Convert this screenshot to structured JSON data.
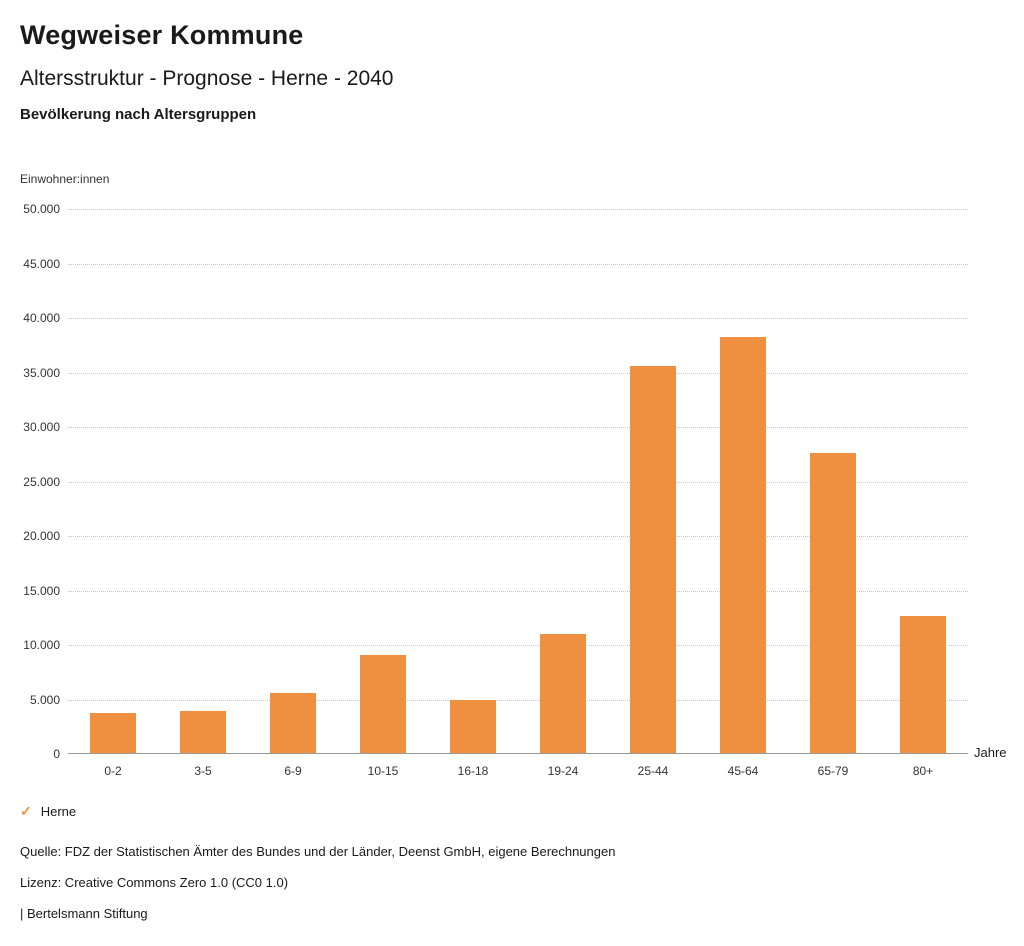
{
  "header": {
    "title": "Wegweiser Kommune",
    "subtitle": "Altersstruktur - Prognose - Herne - 2040",
    "section_title": "Bevölkerung nach Altersgruppen"
  },
  "chart_data": {
    "type": "bar",
    "title": "Bevölkerung nach Altersgruppen",
    "unit_label": "Einwohner:innen",
    "xlabel": "Jahre",
    "ylabel": "Einwohner:innen",
    "categories": [
      "0-2",
      "3-5",
      "6-9",
      "10-15",
      "16-18",
      "19-24",
      "25-44",
      "45-64",
      "65-79",
      "80+"
    ],
    "values": [
      3700,
      3900,
      5500,
      9000,
      4900,
      10900,
      35500,
      38200,
      27500,
      12600
    ],
    "series_name": "Herne",
    "ylim": [
      0,
      50000
    ],
    "y_tick_step": 5000,
    "y_tick_labels": [
      "0",
      "5.000",
      "10.000",
      "15.000",
      "20.000",
      "25.000",
      "30.000",
      "35.000",
      "40.000",
      "45.000",
      "50.000"
    ],
    "grid": "horizontal-dotted",
    "legend_position": "bottom-left"
  },
  "legend": {
    "items": [
      {
        "label": "Herne",
        "color": "#EE9040",
        "marker": "✓"
      }
    ]
  },
  "footer": {
    "source": "Quelle: FDZ der Statistischen Ämter des Bundes und der Länder, Deenst GmbH, eigene Berechnungen",
    "license": "Lizenz: Creative Commons Zero 1.0 (CC0 1.0)",
    "attribution": "| Bertelsmann Stiftung"
  },
  "colors": {
    "bar": "#EE9040",
    "accent": "#EE9040",
    "gridline": "#c8c8c8"
  }
}
